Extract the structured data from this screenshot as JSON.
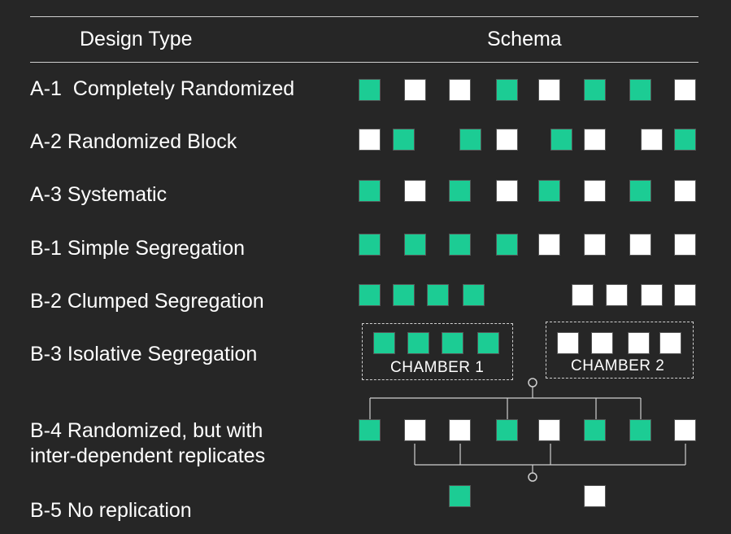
{
  "header": {
    "col1": "Design Type",
    "col2": "Schema"
  },
  "colors": {
    "treatment": "#1ccc94",
    "control": "#ffffff",
    "background": "#262626"
  },
  "rows": [
    {
      "label": "A-1  Completely Randomized",
      "pattern": [
        "green",
        "white",
        "white",
        "green",
        "white",
        "green",
        "green",
        "white"
      ]
    },
    {
      "label": "A-2 Randomized Block",
      "pattern": [
        "white",
        "green",
        "green",
        "white",
        "green",
        "white",
        "white",
        "green"
      ]
    },
    {
      "label": "A-3 Systematic",
      "pattern": [
        "green",
        "white",
        "green",
        "white",
        "green",
        "white",
        "green",
        "white"
      ]
    },
    {
      "label": "B-1 Simple Segregation",
      "pattern": [
        "green",
        "green",
        "green",
        "green",
        "white",
        "white",
        "white",
        "white"
      ]
    },
    {
      "label": "B-2 Clumped Segregation",
      "pattern": [
        "green",
        "green",
        "green",
        "green",
        "white",
        "white",
        "white",
        "white"
      ]
    },
    {
      "label": "B-3 Isolative Segregation",
      "pattern": [
        "green",
        "green",
        "green",
        "green",
        "white",
        "white",
        "white",
        "white"
      ]
    },
    {
      "label_line1": "B-4 Randomized, but with",
      "label_line2": "inter-dependent replicates",
      "pattern": [
        "green",
        "white",
        "white",
        "green",
        "white",
        "green",
        "green",
        "white"
      ]
    },
    {
      "label": "B-5 No replication",
      "pattern": [
        "green",
        "white"
      ]
    }
  ],
  "chambers": [
    "CHAMBER 1",
    "CHAMBER 2"
  ]
}
